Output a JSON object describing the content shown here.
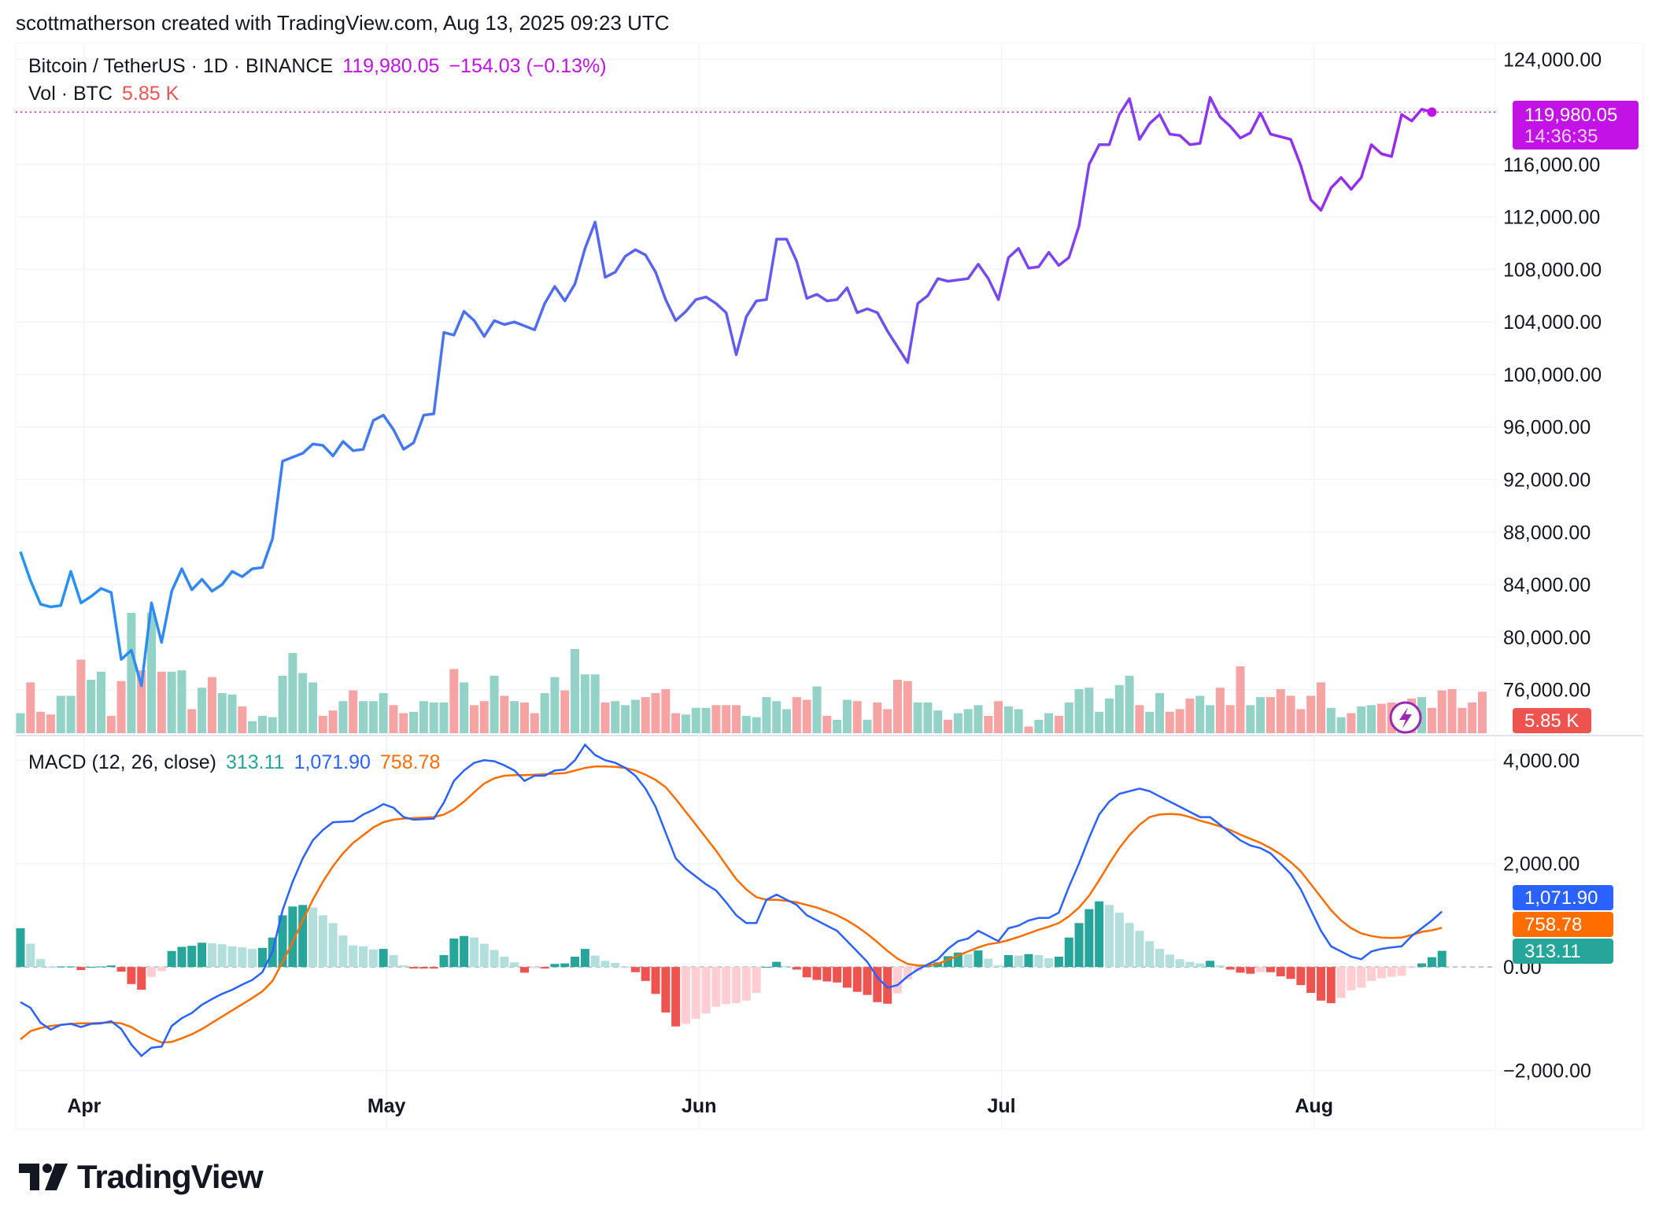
{
  "header": {
    "text": "scottmatherson created with TradingView.com, Aug 13, 2025 09:23 UTC"
  },
  "legend": {
    "symbol": "Bitcoin / TetherUS · 1D · BINANCE",
    "price": "119,980.05",
    "change": "−154.03 (−0.13%)",
    "vol_label": "Vol · BTC",
    "vol_value": "5.85 K",
    "macd_label": "MACD (12, 26, close)",
    "macd_hist": "313.11",
    "macd_line": "1,071.90",
    "macd_signal": "758.78"
  },
  "badges": {
    "price": "119,980.05",
    "countdown": "14:36:35",
    "volume": "5.85 K",
    "macd_line": "1,071.90",
    "macd_signal": "758.78",
    "macd_hist": "313.11"
  },
  "footer": {
    "brand": "TradingView"
  },
  "colors": {
    "price_line_start": "#2196f3",
    "price_line_end": "#9c27f0",
    "vol_up": "#93d2c6",
    "vol_down": "#f5a3a3",
    "macd_line": "#2962ff",
    "signal_line": "#ff6d00",
    "hist_up_strong": "#26a69a",
    "hist_up_weak": "#b2dfdb",
    "hist_down_strong": "#ef5350",
    "hist_down_weak": "#ffcdd2",
    "price_badge": "#c312e6",
    "volume_badge": "#ef5350"
  },
  "chart_data": [
    {
      "type": "line",
      "title": "Bitcoin / TetherUS · 1D · BINANCE",
      "x_tick_labels": [
        "Apr",
        "May",
        "Jun",
        "Jul",
        "Aug"
      ],
      "y_tick_labels": [
        "124,000.00",
        "116,000.00",
        "112,000.00",
        "108,000.00",
        "104,000.00",
        "100,000.00",
        "96,000.00",
        "92,000.00",
        "88,000.00",
        "84,000.00",
        "80,000.00",
        "76,000.00"
      ],
      "ylim": [
        72500,
        124800
      ],
      "x_start": "2025-03-26",
      "series": [
        {
          "values": [
            86500,
            84300,
            82500,
            82300,
            82400,
            85000,
            82600,
            83100,
            83700,
            83400,
            78300,
            79000,
            76300,
            82600,
            79600,
            83500,
            85200,
            83600,
            84400,
            83500,
            84000,
            85000,
            84600,
            85200,
            85300,
            87500,
            93400,
            93700,
            94000,
            94700,
            94600,
            93800,
            94900,
            94200,
            94300,
            96500,
            96900,
            95800,
            94300,
            94800,
            96900,
            97000,
            103200,
            103000,
            104800,
            104100,
            102900,
            104100,
            103800,
            104000,
            103700,
            103400,
            105400,
            106700,
            105600,
            106900,
            109600,
            111600,
            107400,
            107800,
            109000,
            109500,
            109100,
            107800,
            105700,
            104100,
            104800,
            105700,
            105900,
            105400,
            104700,
            101500,
            104400,
            105600,
            105700,
            110300,
            110300,
            108600,
            105800,
            106100,
            105600,
            105700,
            106600,
            104700,
            105000,
            104700,
            103300,
            102100,
            100900,
            105400,
            106000,
            107300,
            107100,
            107200,
            107300,
            108400,
            107300,
            105700,
            108900,
            109600,
            108100,
            108200,
            109300,
            108300,
            108900,
            111300,
            116000,
            117500,
            117500,
            119800,
            121000,
            117900,
            119100,
            119800,
            118300,
            118200,
            117500,
            117600,
            121100,
            119600,
            118900,
            118000,
            118400,
            119900,
            118300,
            118100,
            117900,
            115900,
            113300,
            112500,
            114200,
            115000,
            114100,
            115000,
            117500,
            116800,
            116600,
            119800,
            119300,
            120200,
            119980
          ]
        }
      ],
      "annotations": [
        "119,980.05",
        "14:36:35"
      ]
    },
    {
      "type": "bar",
      "title": "Vol · BTC",
      "last_value": "5.85 K",
      "series": [
        {
          "name": "volume_index",
          "values": [
            0.15,
            0.38,
            0.16,
            0.14,
            0.28,
            0.28,
            0.55,
            0.4,
            0.46,
            0.13,
            0.39,
            0.9,
            0.47,
            0.9,
            0.46,
            0.46,
            0.47,
            0.18,
            0.34,
            0.42,
            0.3,
            0.29,
            0.2,
            0.09,
            0.13,
            0.12,
            0.43,
            0.6,
            0.45,
            0.38,
            0.13,
            0.17,
            0.24,
            0.32,
            0.24,
            0.24,
            0.3,
            0.21,
            0.15,
            0.16,
            0.24,
            0.23,
            0.23,
            0.48,
            0.38,
            0.21,
            0.24,
            0.43,
            0.28,
            0.24,
            0.23,
            0.15,
            0.3,
            0.42,
            0.32,
            0.63,
            0.44,
            0.44,
            0.23,
            0.24,
            0.21,
            0.25,
            0.27,
            0.3,
            0.33,
            0.15,
            0.14,
            0.19,
            0.19,
            0.21,
            0.21,
            0.21,
            0.13,
            0.12,
            0.27,
            0.24,
            0.18,
            0.27,
            0.25,
            0.35,
            0.13,
            0.1,
            0.25,
            0.24,
            0.1,
            0.23,
            0.18,
            0.4,
            0.39,
            0.23,
            0.23,
            0.17,
            0.1,
            0.15,
            0.18,
            0.21,
            0.13,
            0.24,
            0.2,
            0.18,
            0.05,
            0.1,
            0.15,
            0.13,
            0.23,
            0.33,
            0.34,
            0.16,
            0.26,
            0.36,
            0.43,
            0.21,
            0.16,
            0.3,
            0.16,
            0.18,
            0.26,
            0.28,
            0.21,
            0.34,
            0.21,
            0.5,
            0.21,
            0.27,
            0.27,
            0.33,
            0.28,
            0.18,
            0.28,
            0.38,
            0.19,
            0.12,
            0.15,
            0.2,
            0.21,
            0.22,
            0.23,
            0.21,
            0.26,
            0.27,
            0.19,
            0.32,
            0.33,
            0.19,
            0.23,
            0.31
          ]
        }
      ]
    },
    {
      "type": "line",
      "title": "MACD (12, 26, close)",
      "x_tick_labels": [
        "Apr",
        "May",
        "Jun",
        "Jul",
        "Aug"
      ],
      "y_tick_labels": [
        "4,000.00",
        "2,000.00",
        "0.00",
        "−2,000.00"
      ],
      "ylim": [
        -2600,
        4400
      ],
      "series": [
        {
          "name": "MACD",
          "values": [
            -680,
            -790,
            -1080,
            -1210,
            -1120,
            -1100,
            -1160,
            -1100,
            -1090,
            -1050,
            -1200,
            -1500,
            -1720,
            -1560,
            -1540,
            -1140,
            -990,
            -890,
            -730,
            -620,
            -520,
            -440,
            -340,
            -250,
            -100,
            300,
            1100,
            1650,
            2100,
            2450,
            2650,
            2800,
            2810,
            2820,
            2950,
            3040,
            3150,
            3080,
            2900,
            2850,
            2860,
            2870,
            3180,
            3600,
            3800,
            3950,
            4000,
            3980,
            3900,
            3800,
            3600,
            3700,
            3700,
            3800,
            3820,
            4000,
            4300,
            4100,
            4000,
            3950,
            3850,
            3700,
            3450,
            3100,
            2600,
            2100,
            1900,
            1750,
            1600,
            1480,
            1250,
            1000,
            850,
            850,
            1300,
            1400,
            1300,
            1200,
            1000,
            900,
            800,
            700,
            500,
            300,
            100,
            -200,
            -400,
            -350,
            -180,
            -50,
            50,
            150,
            350,
            500,
            550,
            700,
            600,
            500,
            750,
            800,
            900,
            950,
            950,
            1050,
            1550,
            2000,
            2500,
            2950,
            3200,
            3350,
            3400,
            3450,
            3400,
            3300,
            3200,
            3100,
            3000,
            2900,
            2900,
            2750,
            2600,
            2450,
            2350,
            2300,
            2200,
            2000,
            1800,
            1500,
            1100,
            700,
            400,
            300,
            200,
            150,
            300,
            350,
            380,
            400,
            600,
            750,
            900,
            1071.9
          ]
        },
        {
          "name": "Signal",
          "values": [
            -1400,
            -1240,
            -1180,
            -1140,
            -1120,
            -1100,
            -1090,
            -1090,
            -1080,
            -1070,
            -1090,
            -1160,
            -1280,
            -1380,
            -1460,
            -1450,
            -1380,
            -1300,
            -1200,
            -1080,
            -960,
            -840,
            -720,
            -600,
            -470,
            -270,
            100,
            480,
            900,
            1300,
            1650,
            1950,
            2200,
            2400,
            2550,
            2700,
            2800,
            2850,
            2870,
            2880,
            2890,
            2900,
            2950,
            3050,
            3200,
            3380,
            3550,
            3650,
            3700,
            3710,
            3710,
            3720,
            3730,
            3740,
            3750,
            3800,
            3850,
            3880,
            3880,
            3870,
            3850,
            3800,
            3720,
            3620,
            3480,
            3250,
            3000,
            2750,
            2500,
            2250,
            1970,
            1700,
            1500,
            1350,
            1300,
            1300,
            1280,
            1250,
            1200,
            1150,
            1080,
            1000,
            900,
            780,
            640,
            480,
            310,
            160,
            60,
            30,
            30,
            60,
            140,
            220,
            300,
            380,
            440,
            470,
            520,
            580,
            650,
            720,
            780,
            850,
            980,
            1150,
            1380,
            1680,
            2000,
            2300,
            2550,
            2750,
            2900,
            2950,
            2960,
            2950,
            2900,
            2830,
            2780,
            2720,
            2650,
            2560,
            2480,
            2400,
            2300,
            2180,
            2030,
            1850,
            1600,
            1350,
            1100,
            900,
            750,
            650,
            600,
            570,
            560,
            570,
            620,
            680,
            710,
            758.78
          ]
        },
        {
          "name": "Histogram",
          "values": [
            750,
            450,
            150,
            0,
            10,
            10,
            -60,
            0,
            10,
            30,
            -90,
            -330,
            -440,
            -190,
            -80,
            310,
            390,
            410,
            470,
            460,
            440,
            400,
            380,
            350,
            370,
            570,
            1000,
            1170,
            1200,
            1150,
            1000,
            850,
            610,
            420,
            400,
            340,
            350,
            230,
            30,
            -30,
            -30,
            -30,
            230,
            550,
            600,
            570,
            450,
            330,
            200,
            90,
            -110,
            -20,
            -30,
            60,
            70,
            200,
            350,
            220,
            120,
            80,
            0,
            -100,
            -270,
            -520,
            -880,
            -1150,
            -1100,
            -1000,
            -900,
            -770,
            -720,
            -700,
            -650,
            -500,
            0,
            100,
            20,
            -50,
            -200,
            -250,
            -280,
            -300,
            -400,
            -480,
            -540,
            -680,
            -710,
            -510,
            -240,
            -80,
            20,
            90,
            210,
            280,
            250,
            320,
            160,
            30,
            230,
            220,
            250,
            230,
            170,
            200,
            570,
            850,
            1120,
            1270,
            1200,
            1050,
            850,
            700,
            500,
            350,
            240,
            150,
            100,
            70,
            120,
            30,
            -50,
            -110,
            -130,
            -100,
            -100,
            -180,
            -230,
            -350,
            -500,
            -650,
            -700,
            -600,
            -450,
            -400,
            -270,
            -220,
            -190,
            -170,
            -20,
            70,
            190,
            313.11
          ]
        }
      ]
    }
  ]
}
